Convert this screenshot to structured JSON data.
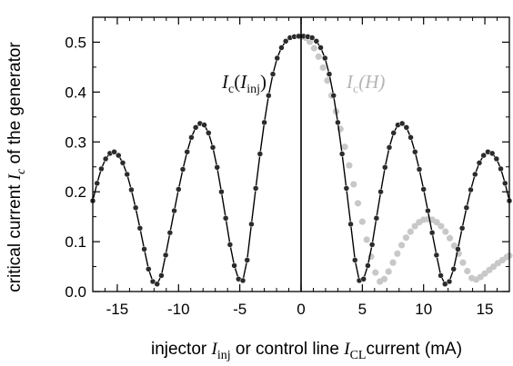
{
  "chart_data": {
    "type": "scatter",
    "xlim": [
      -17,
      17
    ],
    "ylim": [
      0,
      0.55
    ],
    "xticks": [
      -15,
      -10,
      -5,
      0,
      5,
      10,
      15
    ],
    "xtick_labels": [
      "-15",
      "-10",
      "-5",
      "0",
      "5",
      "10",
      "15"
    ],
    "yticks": [
      0.0,
      0.1,
      0.2,
      0.3,
      0.4,
      0.5
    ],
    "ytick_labels": [
      "0.0",
      "0.1",
      "0.2",
      "0.3",
      "0.4",
      "0.5"
    ],
    "xlabel": {
      "before": "injector ",
      "var1": "I",
      "sub1": "inj",
      "mid": " or control line ",
      "var2": "I",
      "sub2": "CL",
      "after": "current (mA)"
    },
    "ylabel": {
      "before": "critical current ",
      "var": "I",
      "sub": "c",
      "after": " of the generator"
    },
    "annotations": {
      "inj": {
        "var": "I",
        "sub": "c",
        "open": "(",
        "arg": "I",
        "argsub": "inj",
        "close": ")"
      },
      "h": {
        "var": "I",
        "sub": "c",
        "text": "(H)"
      }
    },
    "colors": {
      "inj_series": "#2b2b2b",
      "h_series": "#c8c8c8",
      "fit_line": "#000000",
      "zero_line": "#000000"
    },
    "grid": false,
    "legend": "none",
    "series": [
      {
        "marker": "filled-circle",
        "color": "#c8c8c8",
        "x": [
          0.0,
          0.36,
          0.71,
          1.07,
          1.43,
          1.79,
          2.14,
          2.5,
          2.86,
          3.21,
          3.57,
          3.93,
          4.29,
          4.64,
          5.0,
          5.36,
          5.71,
          6.07,
          6.43,
          6.79,
          7.14,
          7.5,
          7.86,
          8.21,
          8.57,
          8.93,
          9.29,
          9.64,
          10.0,
          10.36,
          10.71,
          11.07,
          11.43,
          11.79,
          12.14,
          12.5,
          12.86,
          13.21,
          13.57,
          13.93,
          14.29,
          14.64,
          15.0,
          15.36,
          15.71,
          16.07,
          16.43,
          16.79,
          17.0
        ],
        "y": [
          0.511,
          0.509,
          0.501,
          0.488,
          0.471,
          0.449,
          0.423,
          0.393,
          0.361,
          0.326,
          0.29,
          0.253,
          0.215,
          0.177,
          0.14,
          0.104,
          0.07,
          0.038,
          0.02,
          0.025,
          0.04,
          0.058,
          0.076,
          0.093,
          0.108,
          0.12,
          0.131,
          0.139,
          0.144,
          0.145,
          0.144,
          0.139,
          0.131,
          0.12,
          0.107,
          0.092,
          0.076,
          0.058,
          0.041,
          0.027,
          0.024,
          0.029,
          0.036,
          0.043,
          0.05,
          0.057,
          0.063,
          0.069,
          0.072
        ]
      },
      {
        "marker": "filled-circle-with-fit-line",
        "color": "#2b2b2b",
        "x": [
          -17.0,
          -16.65,
          -16.3,
          -15.95,
          -15.6,
          -15.25,
          -14.9,
          -14.55,
          -14.2,
          -13.85,
          -13.5,
          -13.15,
          -12.8,
          -12.45,
          -12.1,
          -11.75,
          -11.4,
          -11.05,
          -10.7,
          -10.35,
          -10.0,
          -9.65,
          -9.3,
          -8.95,
          -8.6,
          -8.25,
          -7.9,
          -7.55,
          -7.2,
          -6.85,
          -6.5,
          -6.15,
          -5.8,
          -5.45,
          -5.1,
          -4.75,
          -4.4,
          -4.05,
          -3.7,
          -3.35,
          -3.0,
          -2.65,
          -2.3,
          -1.95,
          -1.6,
          -1.25,
          -0.9,
          -0.55,
          -0.2,
          0.2,
          0.55,
          0.9,
          1.25,
          1.6,
          1.95,
          2.3,
          2.65,
          3.0,
          3.35,
          3.7,
          4.05,
          4.4,
          4.75,
          5.1,
          5.45,
          5.8,
          6.15,
          6.5,
          6.85,
          7.2,
          7.55,
          7.9,
          8.25,
          8.6,
          8.95,
          9.3,
          9.65,
          10.0,
          10.35,
          10.7,
          11.05,
          11.4,
          11.75,
          12.1,
          12.45,
          12.8,
          13.15,
          13.5,
          13.85,
          14.2,
          14.55,
          14.9,
          15.25,
          15.6,
          15.95,
          16.3,
          16.65,
          17.0
        ],
        "y": [
          0.182,
          0.217,
          0.246,
          0.266,
          0.277,
          0.28,
          0.273,
          0.258,
          0.235,
          0.204,
          0.168,
          0.127,
          0.085,
          0.045,
          0.02,
          0.015,
          0.032,
          0.073,
          0.118,
          0.162,
          0.205,
          0.245,
          0.28,
          0.309,
          0.329,
          0.337,
          0.334,
          0.318,
          0.289,
          0.249,
          0.2,
          0.147,
          0.094,
          0.052,
          0.025,
          0.022,
          0.063,
          0.135,
          0.207,
          0.276,
          0.339,
          0.393,
          0.436,
          0.468,
          0.489,
          0.502,
          0.509,
          0.511,
          0.512,
          0.512,
          0.511,
          0.509,
          0.502,
          0.489,
          0.468,
          0.436,
          0.393,
          0.339,
          0.276,
          0.207,
          0.135,
          0.063,
          0.022,
          0.025,
          0.052,
          0.094,
          0.147,
          0.2,
          0.249,
          0.289,
          0.318,
          0.334,
          0.337,
          0.329,
          0.309,
          0.28,
          0.245,
          0.205,
          0.162,
          0.118,
          0.073,
          0.032,
          0.015,
          0.02,
          0.045,
          0.085,
          0.127,
          0.168,
          0.204,
          0.235,
          0.258,
          0.273,
          0.28,
          0.277,
          0.266,
          0.246,
          0.217,
          0.182
        ]
      }
    ]
  }
}
